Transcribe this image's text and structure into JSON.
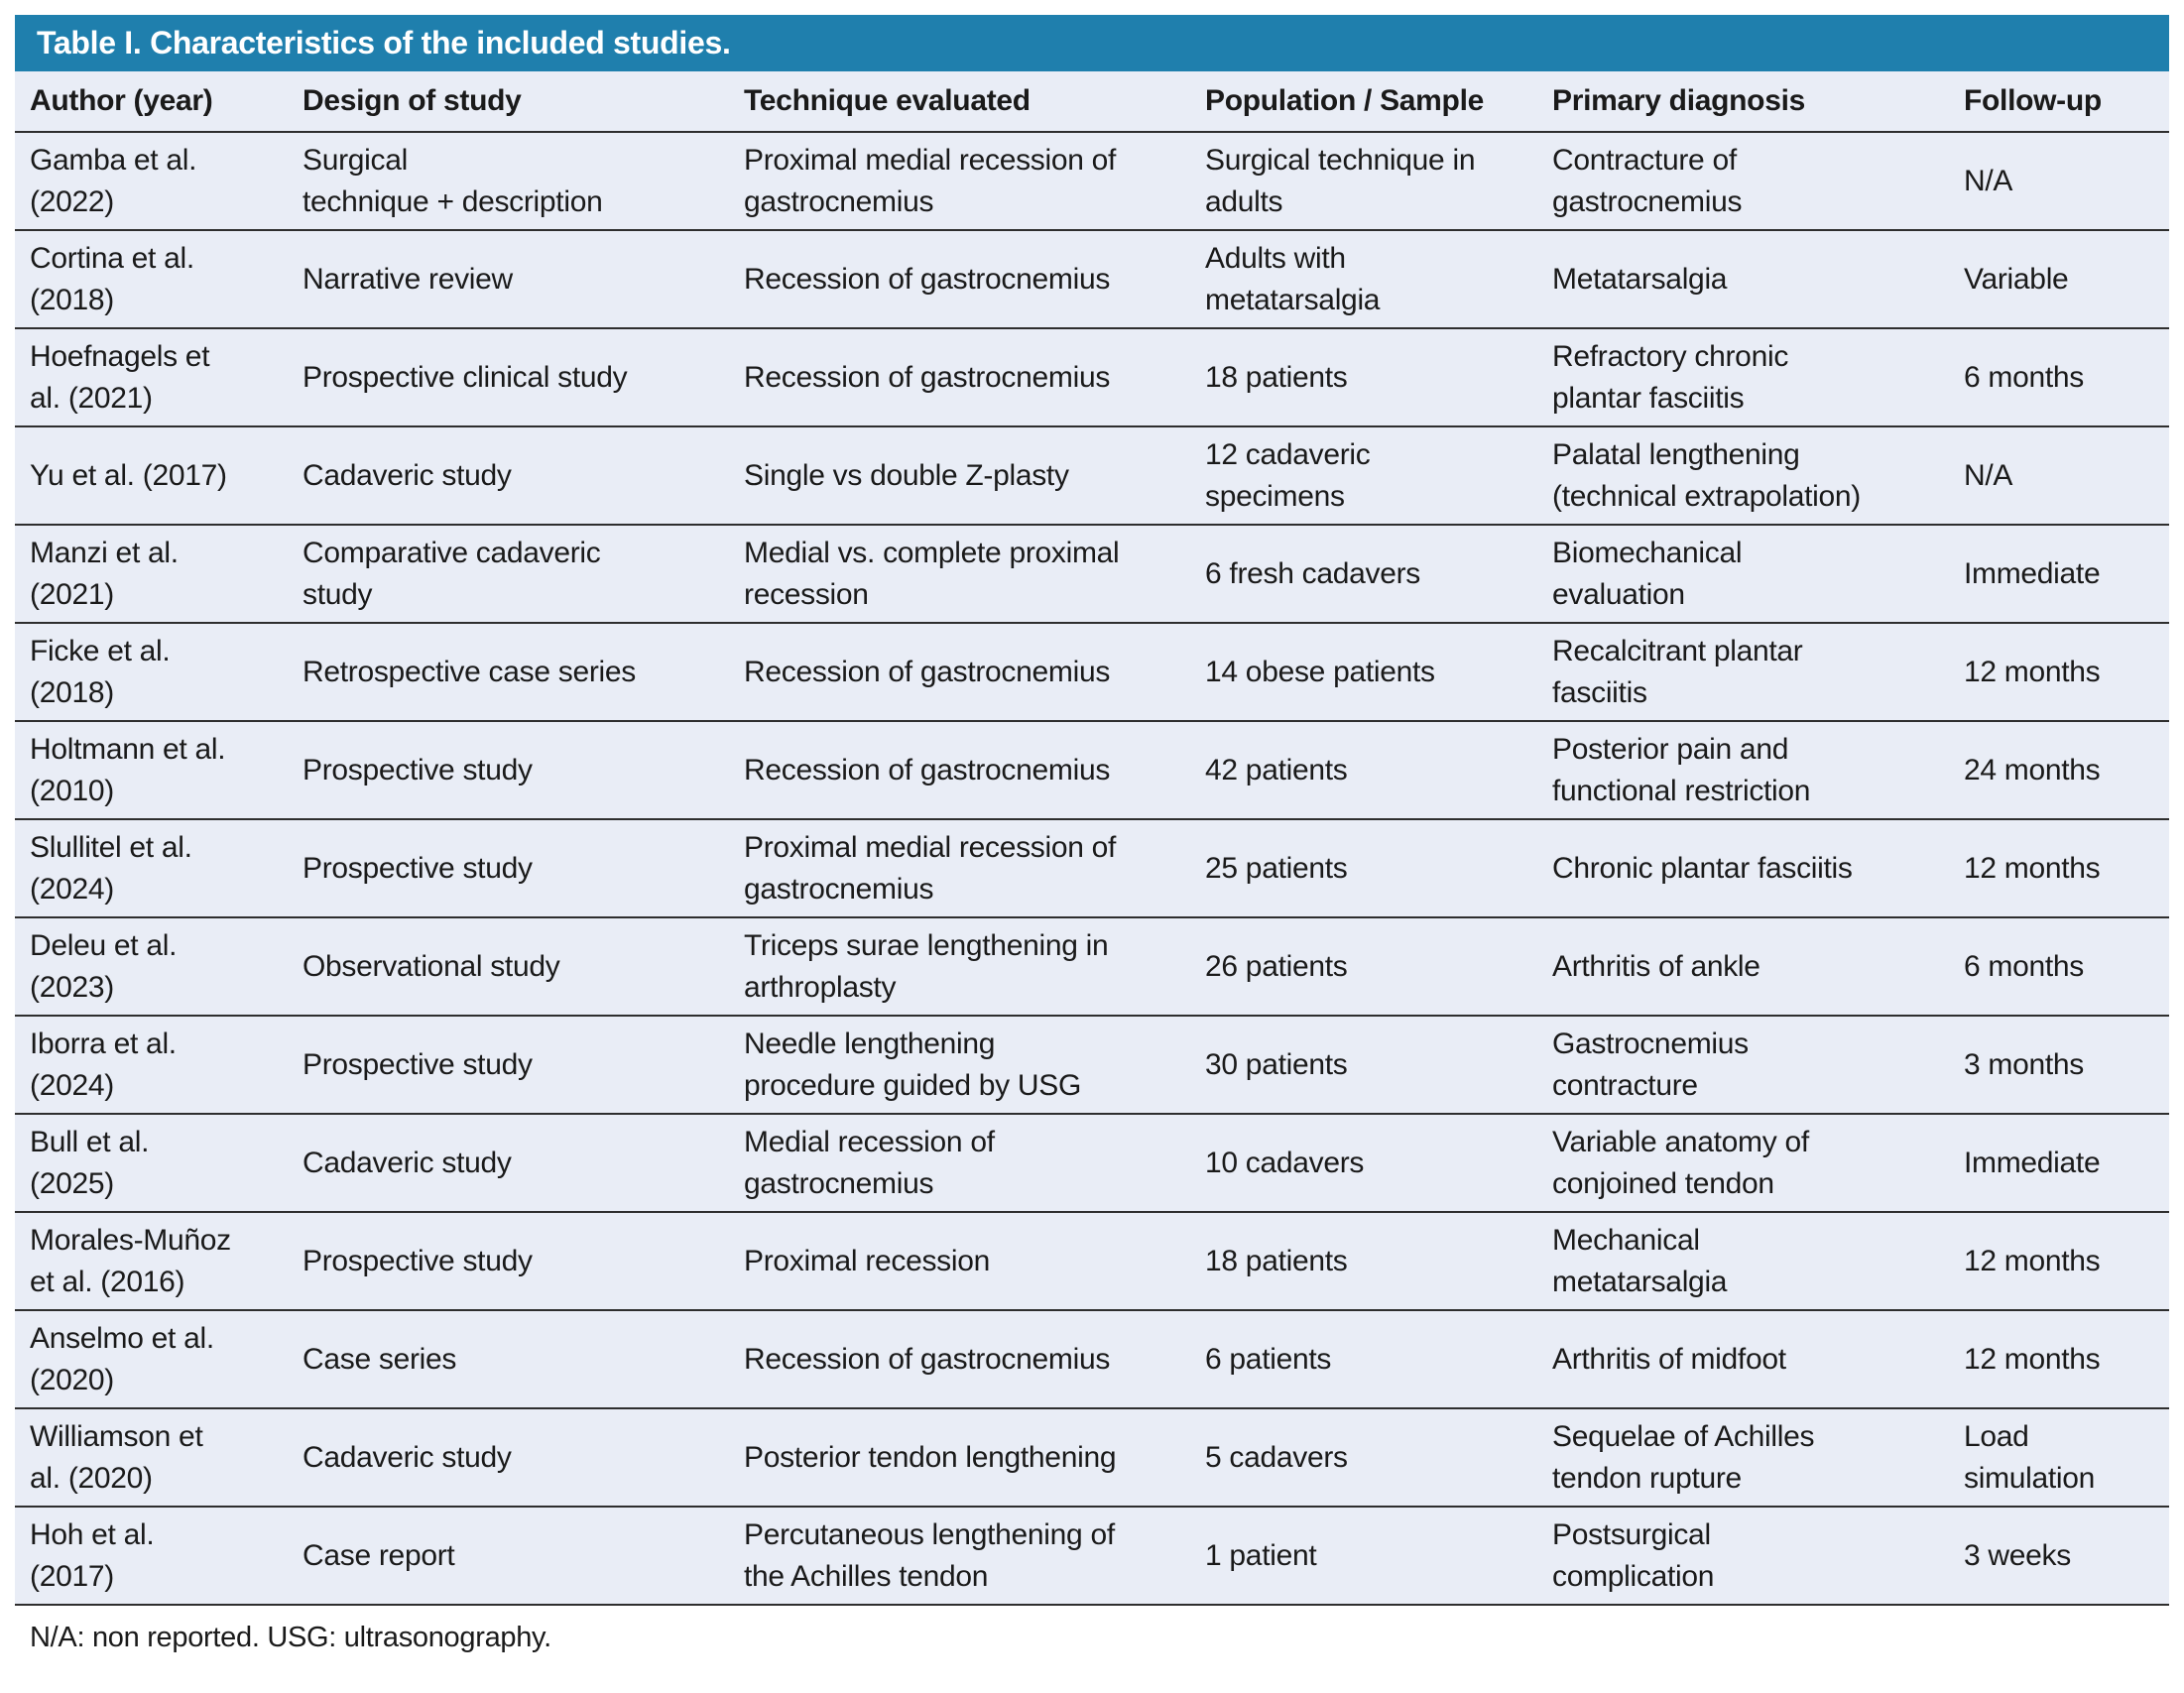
{
  "table": {
    "title": "Table I. Characteristics of the included studies.",
    "columns": [
      "Author (year)",
      "Design of study",
      "Technique evaluated",
      "Population / Sample",
      "Primary diagnosis",
      "Follow-up"
    ],
    "rows": [
      [
        "Gamba et al.\n(2022)",
        "Surgical\ntechnique + description",
        "Proximal medial recession of\ngastrocnemius",
        "Surgical technique in\nadults",
        "Contracture of\ngastrocnemius",
        "N/A"
      ],
      [
        "Cortina et al.\n(2018)",
        "Narrative review",
        "Recession of gastrocnemius",
        "Adults with\nmetatarsalgia",
        "Metatarsalgia",
        "Variable"
      ],
      [
        "Hoefnagels et\nal. (2021)",
        "Prospective clinical study",
        "Recession of gastrocnemius",
        "18 patients",
        "Refractory chronic\nplantar fasciitis",
        "6 months"
      ],
      [
        "Yu et al. (2017)",
        "Cadaveric study",
        "Single vs double Z-plasty",
        "12 cadaveric\nspecimens",
        "Palatal lengthening\n(technical extrapolation)",
        "N/A"
      ],
      [
        "Manzi et al.\n(2021)",
        "Comparative cadaveric\nstudy",
        "Medial vs. complete proximal\nrecession",
        "6 fresh cadavers",
        "Biomechanical\nevaluation",
        "Immediate"
      ],
      [
        "Ficke et al.\n(2018)",
        "Retrospective case series",
        "Recession of gastrocnemius",
        "14 obese patients",
        "Recalcitrant plantar\nfasciitis",
        "12 months"
      ],
      [
        "Holtmann et al.\n(2010)",
        "Prospective study",
        "Recession of gastrocnemius",
        "42 patients",
        "Posterior pain and\nfunctional restriction",
        "24 months"
      ],
      [
        "Slullitel et al.\n(2024)",
        "Prospective study",
        "Proximal medial recession of\ngastrocnemius",
        "25 patients",
        "Chronic plantar fasciitis",
        "12 months"
      ],
      [
        "Deleu et al.\n(2023)",
        "Observational study",
        "Triceps surae lengthening in\narthroplasty",
        "26 patients",
        "Arthritis of ankle",
        "6 months"
      ],
      [
        "Iborra et al.\n(2024)",
        "Prospective study",
        "Needle lengthening\nprocedure guided by USG",
        "30 patients",
        "Gastrocnemius\ncontracture",
        "3 months"
      ],
      [
        "Bull et al.\n(2025)",
        "Cadaveric study",
        "Medial recession of\ngastrocnemius",
        "10 cadavers",
        "Variable anatomy of\nconjoined tendon",
        "Immediate"
      ],
      [
        "Morales-Muñoz\net al. (2016)",
        "Prospective study",
        "Proximal recession",
        "18 patients",
        "Mechanical\nmetatarsalgia",
        "12 months"
      ],
      [
        "Anselmo et al.\n(2020)",
        "Case series",
        "Recession of gastrocnemius",
        "6 patients",
        "Arthritis of midfoot",
        "12 months"
      ],
      [
        "Williamson et\nal. (2020)",
        "Cadaveric study",
        "Posterior tendon lengthening",
        "5 cadavers",
        "Sequelae of Achilles\ntendon rupture",
        "Load\nsimulation"
      ],
      [
        "Hoh et al.\n(2017)",
        "Case report",
        "Percutaneous lengthening of\nthe Achilles tendon",
        "1 patient",
        "Postsurgical\ncomplication",
        "3 weeks"
      ]
    ],
    "footnote": "N/A: non reported. USG: ultrasonography.",
    "colors": {
      "header_band": "#1f7fad",
      "row_background": "#e9edf6",
      "divider": "#2e2e2e",
      "title_text": "#ffffff",
      "body_text": "#1a1a1a"
    }
  }
}
